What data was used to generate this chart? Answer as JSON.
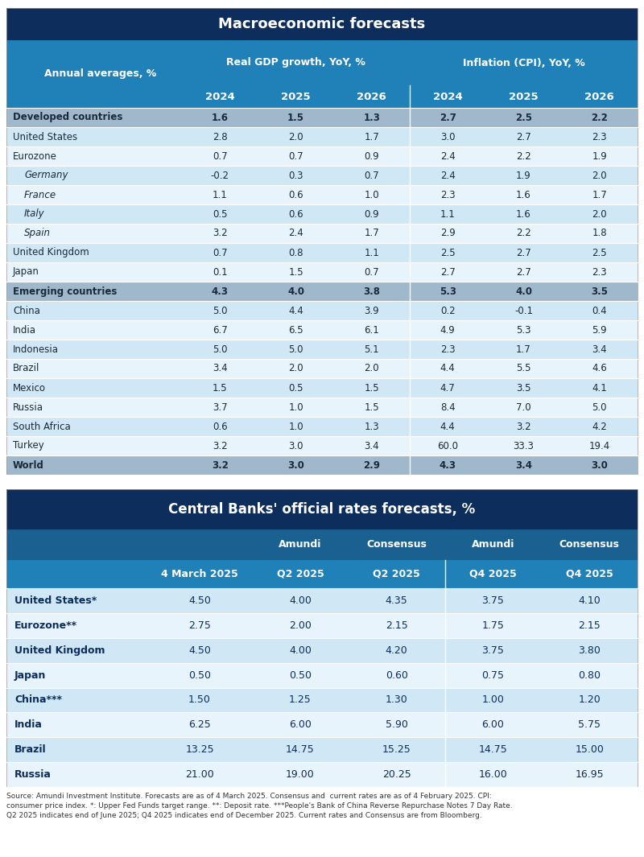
{
  "table1_title": "Macroeconomic forecasts",
  "table1_subheader1": "Real GDP growth, YoY, %",
  "table1_subheader2": "Inflation (CPI), YoY, %",
  "table1_col_label": "Annual averages, %",
  "table1_years": [
    "2024",
    "2025",
    "2026",
    "2024",
    "2025",
    "2026"
  ],
  "table1_rows": [
    {
      "label": "Developed countries",
      "values": [
        "1.6",
        "1.5",
        "1.3",
        "2.7",
        "2.5",
        "2.2"
      ],
      "style": "group_header"
    },
    {
      "label": "United States",
      "values": [
        "2.8",
        "2.0",
        "1.7",
        "3.0",
        "2.7",
        "2.3"
      ],
      "style": "normal_light"
    },
    {
      "label": "Eurozone",
      "values": [
        "0.7",
        "0.7",
        "0.9",
        "2.4",
        "2.2",
        "1.9"
      ],
      "style": "normal_white"
    },
    {
      "label": "Germany",
      "values": [
        "-0.2",
        "0.3",
        "0.7",
        "2.4",
        "1.9",
        "2.0"
      ],
      "style": "italic_light"
    },
    {
      "label": "France",
      "values": [
        "1.1",
        "0.6",
        "1.0",
        "2.3",
        "1.6",
        "1.7"
      ],
      "style": "italic_white"
    },
    {
      "label": "Italy",
      "values": [
        "0.5",
        "0.6",
        "0.9",
        "1.1",
        "1.6",
        "2.0"
      ],
      "style": "italic_light"
    },
    {
      "label": "Spain",
      "values": [
        "3.2",
        "2.4",
        "1.7",
        "2.9",
        "2.2",
        "1.8"
      ],
      "style": "italic_white"
    },
    {
      "label": "United Kingdom",
      "values": [
        "0.7",
        "0.8",
        "1.1",
        "2.5",
        "2.7",
        "2.5"
      ],
      "style": "normal_light"
    },
    {
      "label": "Japan",
      "values": [
        "0.1",
        "1.5",
        "0.7",
        "2.7",
        "2.7",
        "2.3"
      ],
      "style": "normal_white"
    },
    {
      "label": "Emerging countries",
      "values": [
        "4.3",
        "4.0",
        "3.8",
        "5.3",
        "4.0",
        "3.5"
      ],
      "style": "group_header"
    },
    {
      "label": "China",
      "values": [
        "5.0",
        "4.4",
        "3.9",
        "0.2",
        "-0.1",
        "0.4"
      ],
      "style": "normal_light"
    },
    {
      "label": "India",
      "values": [
        "6.7",
        "6.5",
        "6.1",
        "4.9",
        "5.3",
        "5.9"
      ],
      "style": "normal_white"
    },
    {
      "label": "Indonesia",
      "values": [
        "5.0",
        "5.0",
        "5.1",
        "2.3",
        "1.7",
        "3.4"
      ],
      "style": "normal_light"
    },
    {
      "label": "Brazil",
      "values": [
        "3.4",
        "2.0",
        "2.0",
        "4.4",
        "5.5",
        "4.6"
      ],
      "style": "normal_white"
    },
    {
      "label": "Mexico",
      "values": [
        "1.5",
        "0.5",
        "1.5",
        "4.7",
        "3.5",
        "4.1"
      ],
      "style": "normal_light"
    },
    {
      "label": "Russia",
      "values": [
        "3.7",
        "1.0",
        "1.5",
        "8.4",
        "7.0",
        "5.0"
      ],
      "style": "normal_white"
    },
    {
      "label": "South Africa",
      "values": [
        "0.6",
        "1.0",
        "1.3",
        "4.4",
        "3.2",
        "4.2"
      ],
      "style": "normal_light"
    },
    {
      "label": "Turkey",
      "values": [
        "3.2",
        "3.0",
        "3.4",
        "60.0",
        "33.3",
        "19.4"
      ],
      "style": "normal_white"
    },
    {
      "label": "World",
      "values": [
        "3.2",
        "3.0",
        "2.9",
        "4.3",
        "3.4",
        "3.0"
      ],
      "style": "world_footer"
    }
  ],
  "table2_title": "Central Banks' official rates forecasts, %",
  "table2_col_header1": "Amundi",
  "table2_col_header2": "Consensus",
  "table2_col_header3": "Amundi",
  "table2_col_header4": "Consensus",
  "table2_col_sub1": "4 March 2025",
  "table2_col_sub2": "Q2 2025",
  "table2_col_sub3": "Q2 2025",
  "table2_col_sub4": "Q4 2025",
  "table2_col_sub5": "Q4 2025",
  "table2_rows": [
    {
      "label": "United States*",
      "values": [
        "4.50",
        "4.00",
        "4.35",
        "3.75",
        "4.10"
      ],
      "style": "light"
    },
    {
      "label": "Eurozone**",
      "values": [
        "2.75",
        "2.00",
        "2.15",
        "1.75",
        "2.15"
      ],
      "style": "white"
    },
    {
      "label": "United Kingdom",
      "values": [
        "4.50",
        "4.00",
        "4.20",
        "3.75",
        "3.80"
      ],
      "style": "light"
    },
    {
      "label": "Japan",
      "values": [
        "0.50",
        "0.50",
        "0.60",
        "0.75",
        "0.80"
      ],
      "style": "white"
    },
    {
      "label": "China***",
      "values": [
        "1.50",
        "1.25",
        "1.30",
        "1.00",
        "1.20"
      ],
      "style": "light"
    },
    {
      "label": "India",
      "values": [
        "6.25",
        "6.00",
        "5.90",
        "6.00",
        "5.75"
      ],
      "style": "white"
    },
    {
      "label": "Brazil",
      "values": [
        "13.25",
        "14.75",
        "15.25",
        "14.75",
        "15.00"
      ],
      "style": "light"
    },
    {
      "label": "Russia",
      "values": [
        "21.00",
        "19.00",
        "20.25",
        "16.00",
        "16.95"
      ],
      "style": "white"
    }
  ],
  "footnote": "Source: Amundi Investment Institute. Forecasts are as of 4 March 2025. Consensus and  current rates are as of 4 February 2025. CPI:\nconsumer price index. *: Upper Fed Funds target range. **: Deposit rate. ***People's Bank of China Reverse Repurchase Notes 7 Day Rate.\nQ2 2025 indicates end of June 2025; Q4 2025 indicates end of December 2025. Current rates and Consensus are from Bloomberg.",
  "colors": {
    "dark_navy": "#0d2d5c",
    "medium_blue": "#1a6090",
    "light_blue_header": "#2080b8",
    "very_light_blue": "#d0e8f5",
    "row_white": "#e8f4fb",
    "group_header_bg": "#a0b8cc",
    "world_footer_bg": "#a0b8cc",
    "t2_header_bg": "#1a6090",
    "t2_subhdr_bg": "#2080b8",
    "white": "#ffffff",
    "text_dark": "#1a2a3a",
    "text_navy": "#0d2d5c"
  }
}
